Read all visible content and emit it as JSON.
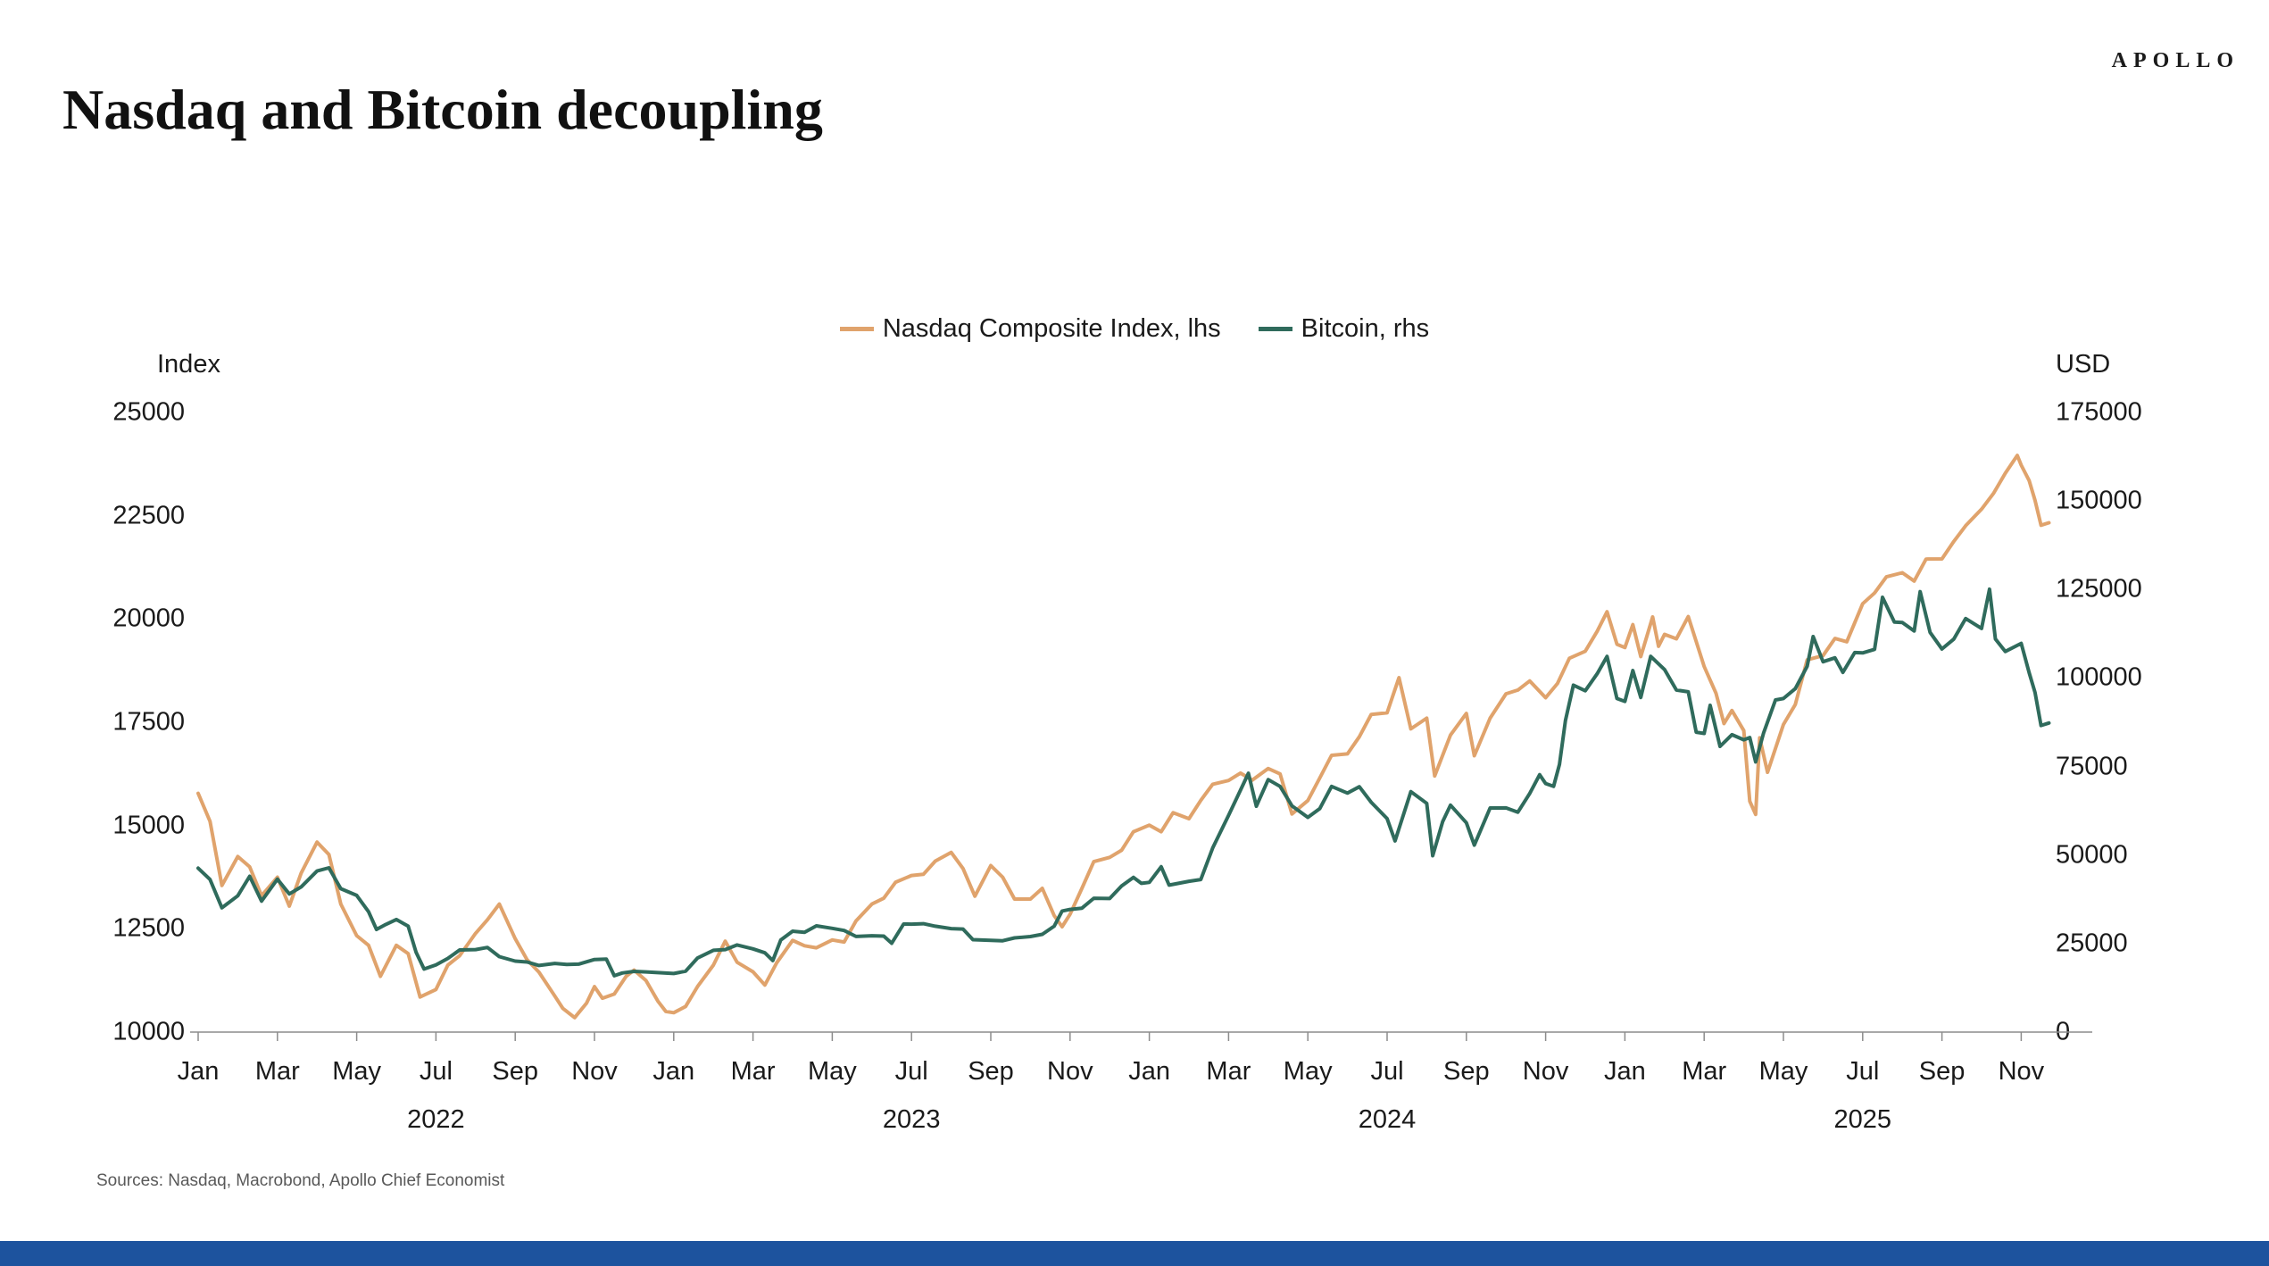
{
  "page": {
    "brand": "APOLLO",
    "title": "Nasdaq and Bitcoin decoupling",
    "sources": "Sources: Nasdaq, Macrobond, Apollo Chief Economist",
    "bottom_bar_color": "#1D539E"
  },
  "legend": {
    "items": [
      {
        "label": "Nasdaq Composite Index, lhs",
        "color": "#E0A36C"
      },
      {
        "label": "Bitcoin, rhs",
        "color": "#2F6B5C"
      }
    ]
  },
  "chart_data": {
    "type": "line",
    "title": "Nasdaq and Bitcoin decoupling",
    "grid": false,
    "legend_position": "top-center",
    "left_axis": {
      "title": "Index",
      "ticks": [
        25000,
        22500,
        20000,
        17500,
        15000,
        12500,
        10000
      ],
      "range": [
        10000,
        25000
      ]
    },
    "right_axis": {
      "title": "USD",
      "ticks": [
        175000,
        150000,
        125000,
        100000,
        75000,
        50000,
        25000,
        0
      ],
      "range": [
        0,
        175000
      ]
    },
    "x_axis": {
      "unit": "months since Jan 2022",
      "month_labels": [
        "Jan",
        "Mar",
        "May",
        "Jul",
        "Sep",
        "Nov",
        "Jan",
        "Mar",
        "May",
        "Jul",
        "Sep",
        "Nov",
        "Jan",
        "Mar",
        "May",
        "Jul",
        "Sep",
        "Nov",
        "Jan",
        "Mar",
        "May",
        "Jul",
        "Sep",
        "Nov"
      ],
      "month_positions": [
        0,
        2,
        4,
        6,
        8,
        10,
        12,
        14,
        16,
        18,
        20,
        22,
        24,
        26,
        28,
        30,
        32,
        34,
        36,
        38,
        40,
        42,
        44,
        46
      ],
      "year_labels": [
        {
          "label": "2022",
          "position": 6
        },
        {
          "label": "2023",
          "position": 18
        },
        {
          "label": "2024",
          "position": 30
        },
        {
          "label": "2025",
          "position": 42
        }
      ]
    },
    "series": [
      {
        "name": "Nasdaq Composite Index, lhs",
        "axis": "left",
        "color": "#E0A36C",
        "x": [
          0,
          0.3,
          0.6,
          1,
          1.3,
          1.6,
          2,
          2.3,
          2.6,
          3,
          3.3,
          3.6,
          4,
          4.3,
          4.6,
          5,
          5.3,
          5.6,
          6,
          6.3,
          6.6,
          7,
          7.3,
          7.6,
          8,
          8.3,
          8.6,
          9,
          9.2,
          9.5,
          9.8,
          10,
          10.2,
          10.5,
          10.8,
          11,
          11.3,
          11.6,
          11.8,
          12,
          12.3,
          12.6,
          13,
          13.3,
          13.6,
          14,
          14.3,
          14.6,
          15,
          15.3,
          15.6,
          16,
          16.3,
          16.6,
          17,
          17.3,
          17.6,
          18,
          18.3,
          18.6,
          19,
          19.3,
          19.6,
          20,
          20.3,
          20.6,
          21,
          21.3,
          21.6,
          21.8,
          22,
          22.3,
          22.6,
          23,
          23.3,
          23.6,
          24,
          24.3,
          24.6,
          25,
          25.3,
          25.6,
          26,
          26.3,
          26.6,
          27,
          27.3,
          27.6,
          28,
          28.3,
          28.6,
          29,
          29.3,
          29.6,
          30,
          30.3,
          30.6,
          31,
          31.2,
          31.6,
          32,
          32.2,
          32.6,
          33,
          33.3,
          33.6,
          34,
          34.3,
          34.6,
          35,
          35.3,
          35.55,
          35.8,
          36,
          36.2,
          36.4,
          36.7,
          36.85,
          37,
          37.3,
          37.6,
          38,
          38.3,
          38.5,
          38.7,
          39,
          39.15,
          39.3,
          39.4,
          39.6,
          40,
          40.3,
          40.6,
          41,
          41.3,
          41.6,
          42,
          42.3,
          42.6,
          43,
          43.3,
          43.6,
          44,
          44.3,
          44.6,
          45,
          45.3,
          45.6,
          45.9,
          46,
          46.2,
          46.35,
          46.5,
          46.7
        ],
        "values": [
          15780,
          15100,
          13550,
          14250,
          14000,
          13300,
          13750,
          13050,
          13850,
          14600,
          14300,
          13100,
          12335,
          12100,
          11350,
          12100,
          11900,
          10850,
          11030,
          11620,
          11850,
          12390,
          12720,
          13100,
          12260,
          11750,
          11450,
          10870,
          10575,
          10350,
          10700,
          11100,
          10820,
          10920,
          11350,
          11500,
          11250,
          10750,
          10500,
          10470,
          10620,
          11100,
          11620,
          12200,
          11690,
          11460,
          11140,
          11680,
          12220,
          12090,
          12040,
          12230,
          12180,
          12690,
          13100,
          13240,
          13630,
          13790,
          13820,
          14140,
          14350,
          13960,
          13290,
          14030,
          13750,
          13220,
          13220,
          13480,
          12820,
          12550,
          12850,
          13480,
          14125,
          14230,
          14400,
          14850,
          15010,
          14850,
          15310,
          15165,
          15610,
          16000,
          16090,
          16270,
          16100,
          16380,
          16250,
          15280,
          15605,
          16150,
          16700,
          16735,
          17150,
          17690,
          17730,
          18580,
          17340,
          17600,
          16200,
          17190,
          17715,
          16690,
          17600,
          18190,
          18280,
          18500,
          18095,
          18440,
          19050,
          19220,
          19700,
          20175,
          19390,
          19310,
          19865,
          19090,
          20050,
          19340,
          19630,
          19520,
          20060,
          18850,
          18200,
          17470,
          17785,
          17300,
          15590,
          15270,
          17125,
          16290,
          17445,
          17930,
          19010,
          19115,
          19530,
          19450,
          20370,
          20630,
          21020,
          21120,
          20920,
          21450,
          21455,
          21880,
          22260,
          22660,
          23040,
          23530,
          23960,
          23725,
          23350,
          22870,
          22270,
          22330
        ]
      },
      {
        "name": "Bitcoin, rhs",
        "axis": "right",
        "color": "#2F6B5C",
        "x": [
          0,
          0.3,
          0.6,
          1,
          1.3,
          1.6,
          2,
          2.3,
          2.6,
          3,
          3.3,
          3.6,
          4,
          4.3,
          4.5,
          4.7,
          5,
          5.3,
          5.5,
          5.7,
          6,
          6.3,
          6.6,
          7,
          7.3,
          7.6,
          8,
          8.3,
          8.6,
          9,
          9.3,
          9.6,
          10,
          10.3,
          10.5,
          10.7,
          11,
          11.3,
          11.6,
          12,
          12.3,
          12.6,
          13,
          13.3,
          13.6,
          14,
          14.3,
          14.5,
          14.7,
          15,
          15.3,
          15.6,
          16,
          16.3,
          16.6,
          17,
          17.3,
          17.5,
          17.8,
          18,
          18.3,
          18.6,
          19,
          19.3,
          19.55,
          20,
          20.3,
          20.6,
          21,
          21.3,
          21.6,
          21.8,
          22,
          22.3,
          22.6,
          23,
          23.3,
          23.6,
          23.8,
          24,
          24.3,
          24.5,
          25,
          25.3,
          25.6,
          26,
          26.3,
          26.5,
          26.7,
          27,
          27.3,
          27.6,
          28,
          28.3,
          28.6,
          29,
          29.3,
          29.6,
          30,
          30.2,
          30.6,
          31,
          31.15,
          31.4,
          31.6,
          32,
          32.2,
          32.6,
          33,
          33.3,
          33.6,
          33.85,
          34,
          34.2,
          34.35,
          34.5,
          34.7,
          35,
          35.3,
          35.55,
          35.8,
          36,
          36.2,
          36.4,
          36.65,
          37,
          37.3,
          37.6,
          37.8,
          38,
          38.15,
          38.4,
          38.7,
          39,
          39.15,
          39.3,
          39.5,
          39.8,
          40,
          40.3,
          40.6,
          40.75,
          41,
          41.3,
          41.5,
          41.8,
          42,
          42.3,
          42.5,
          42.8,
          43,
          43.3,
          43.45,
          43.7,
          44,
          44.3,
          44.6,
          45,
          45.2,
          45.35,
          45.6,
          46,
          46.2,
          46.35,
          46.5,
          46.7
        ],
        "values": [
          46300,
          43100,
          35100,
          38500,
          44000,
          37000,
          43200,
          39000,
          41000,
          45500,
          46400,
          40500,
          38600,
          34000,
          29000,
          30200,
          31800,
          29900,
          22500,
          17800,
          19000,
          20800,
          23200,
          23300,
          23900,
          21300,
          20050,
          19800,
          18800,
          19400,
          19100,
          19200,
          20500,
          20600,
          15900,
          16700,
          17150,
          17000,
          16800,
          16550,
          17200,
          20900,
          23100,
          23300,
          24600,
          23500,
          22400,
          20200,
          26000,
          28500,
          28200,
          30000,
          29300,
          28700,
          27000,
          27200,
          27100,
          25100,
          30500,
          30480,
          30600,
          29900,
          29230,
          29100,
          26100,
          25900,
          25800,
          26600,
          26970,
          27600,
          29900,
          34200,
          34650,
          35000,
          37800,
          37720,
          41250,
          43700,
          42000,
          42280,
          46700,
          41500,
          42580,
          43100,
          52000,
          61200,
          68300,
          73100,
          63800,
          71300,
          69400,
          63900,
          60640,
          63100,
          69400,
          67500,
          69300,
          64900,
          60300,
          54000,
          67900,
          64600,
          49800,
          59400,
          64100,
          59100,
          52800,
          63300,
          63330,
          62100,
          67400,
          72700,
          70200,
          69400,
          75600,
          88000,
          98000,
          96400,
          101200,
          106100,
          94200,
          93400,
          102100,
          94500,
          106100,
          102400,
          96600,
          96100,
          84700,
          84350,
          92300,
          80700,
          84000,
          82550,
          83200,
          76300,
          84500,
          93800,
          94200,
          97000,
          103300,
          111700,
          104600,
          105700,
          101600,
          107200,
          107100,
          108100,
          122800,
          115800,
          115700,
          113300,
          124400,
          112900,
          108200,
          111000,
          116800,
          114000,
          125100,
          111000,
          107500,
          109800,
          101500,
          95900,
          86600,
          87300
        ]
      }
    ]
  }
}
